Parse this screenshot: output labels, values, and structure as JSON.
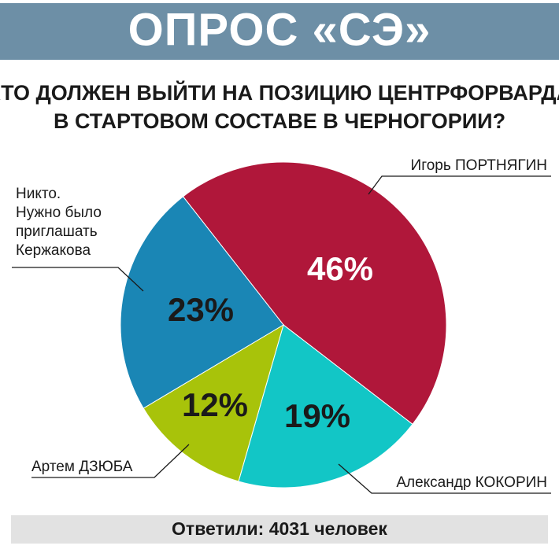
{
  "chart_data": {
    "type": "pie",
    "title": "ОПРОС «СЭ»",
    "subtitle": [
      "КТО ДОЛЖЕН ВЫЙТИ НА ПОЗИЦИЮ ЦЕНТРФОРВАРДА",
      "В СТАРТОВОМ СОСТАВЕ В ЧЕРНОГОРИИ?"
    ],
    "categories": [
      "Игорь ПОРТНЯГИН",
      "Александр КОКОРИН",
      "Артем ДЗЮБА",
      "Никто.\nНужно было\nприглашать\nКержакова"
    ],
    "values": [
      46,
      19,
      12,
      23
    ],
    "value_labels": [
      "46%",
      "19%",
      "12%",
      "23%"
    ],
    "colors": [
      "#b0173a",
      "#12c6c6",
      "#a8c30a",
      "#1a86b5"
    ],
    "note": "Ответили: 4031 человек"
  }
}
